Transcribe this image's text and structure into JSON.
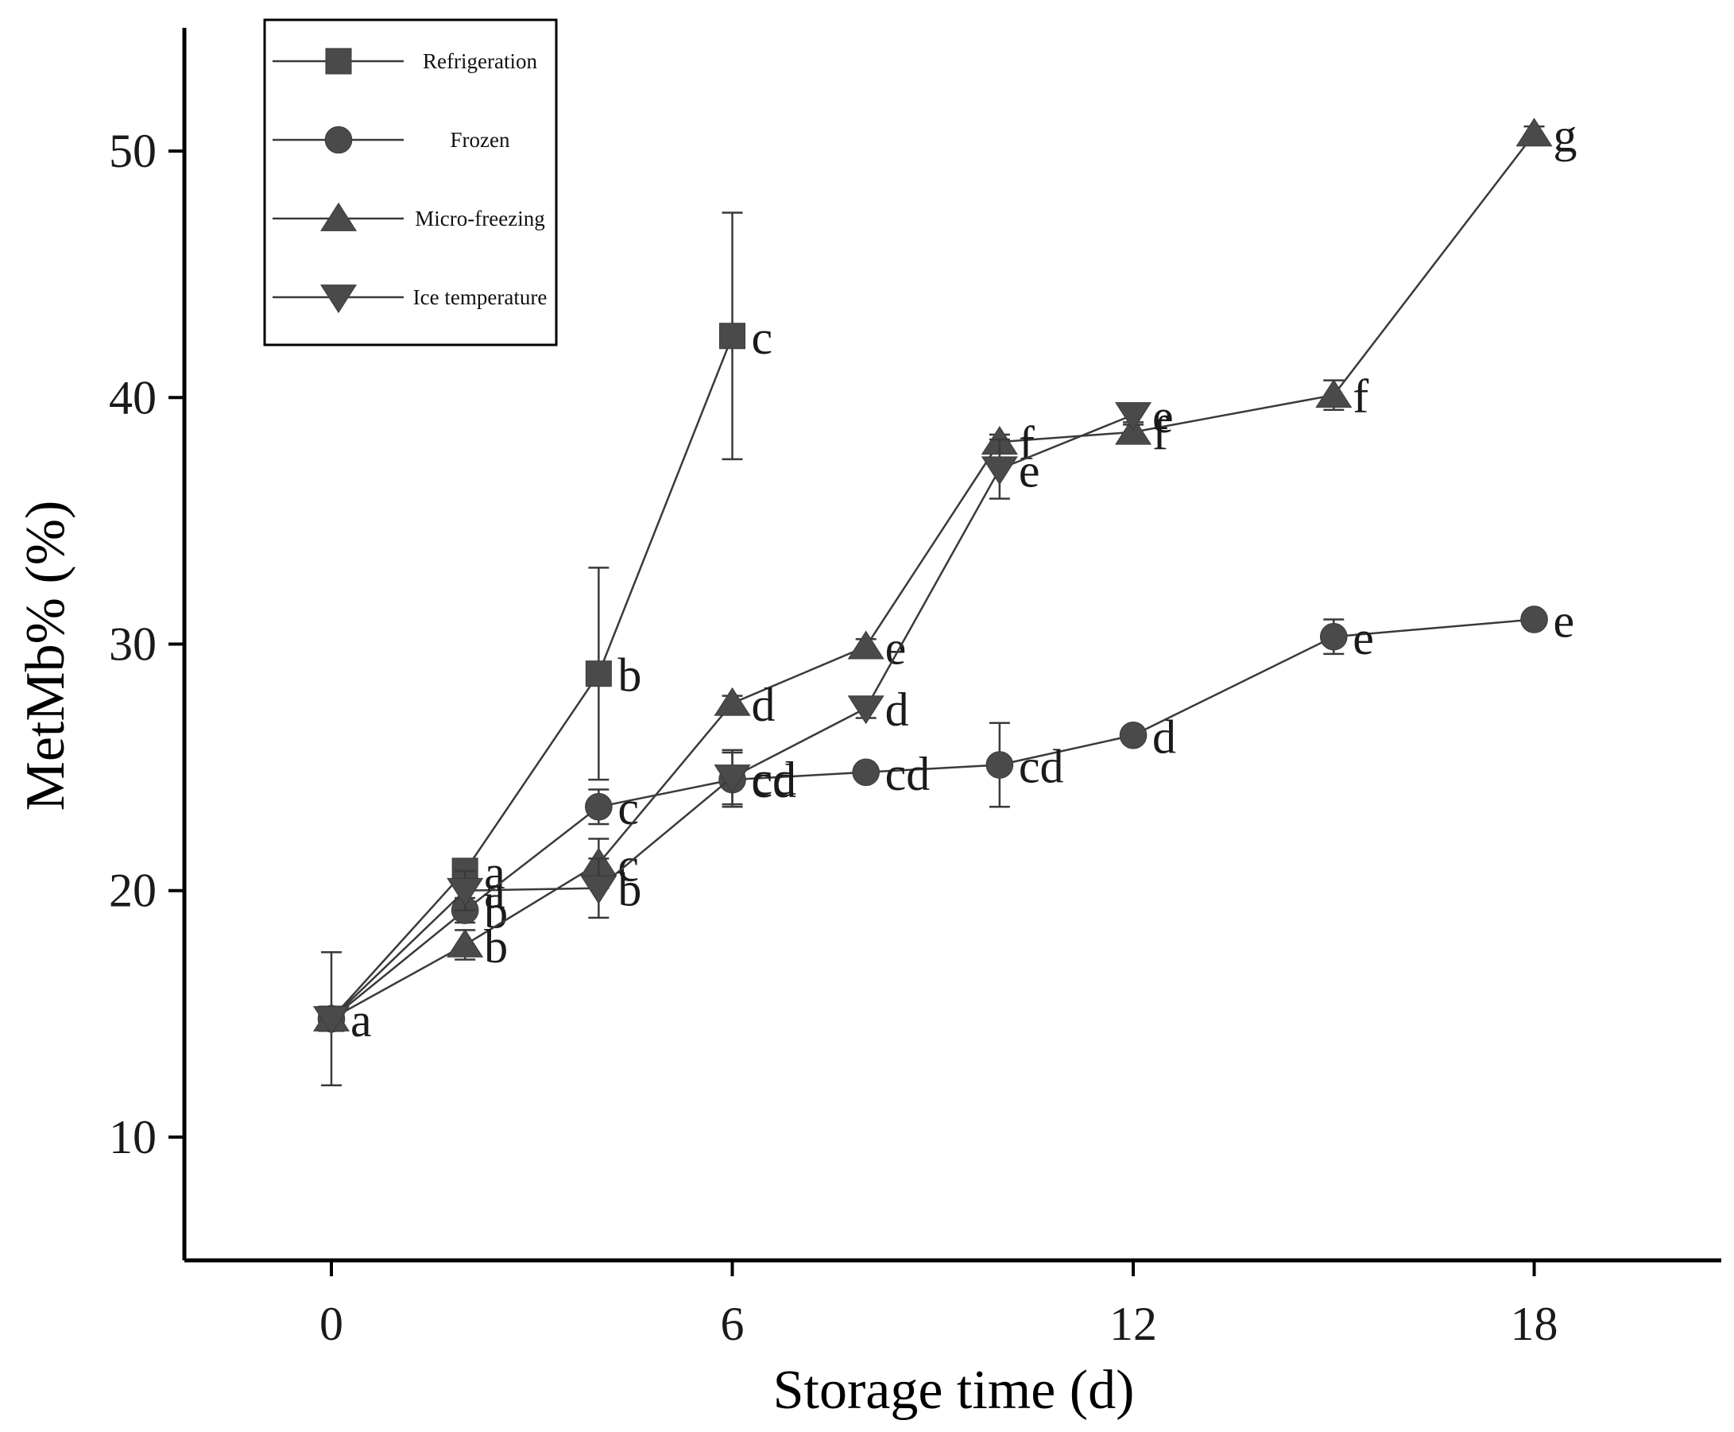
{
  "chart_data": {
    "type": "line",
    "title": "",
    "xlabel": "Storage time (d)",
    "ylabel": "MetMb% (%)",
    "xlim": [
      -2.2,
      20.8
    ],
    "ylim": [
      5,
      55
    ],
    "xticks": [
      0,
      6,
      12,
      18
    ],
    "yticks": [
      10,
      20,
      30,
      40,
      50
    ],
    "legend_position": "top-left",
    "series": [
      {
        "name": "Refrigeration",
        "marker": "square",
        "x": [
          0,
          2,
          4,
          6
        ],
        "y": [
          14.8,
          20.8,
          28.8,
          42.5
        ],
        "err": [
          2.7,
          0.4,
          4.3,
          5.0
        ],
        "labels": [
          "",
          "a",
          "b",
          "c"
        ]
      },
      {
        "name": "Frozen",
        "marker": "circle",
        "x": [
          0,
          2,
          4,
          6,
          8,
          10,
          12,
          15,
          18
        ],
        "y": [
          14.8,
          19.2,
          23.4,
          24.5,
          24.8,
          25.1,
          26.3,
          30.3,
          31.0
        ],
        "err": [
          0,
          0.5,
          0.7,
          1.1,
          0.3,
          1.7,
          0.3,
          0.7,
          0.3
        ],
        "labels": [
          "",
          "b",
          "c",
          "cd",
          "cd",
          "cd",
          "d",
          "e",
          "e"
        ]
      },
      {
        "name": "Micro-freezing",
        "marker": "triangle-up",
        "x": [
          0,
          2,
          4,
          6,
          8,
          10,
          12,
          15,
          18
        ],
        "y": [
          14.8,
          17.8,
          21.1,
          27.6,
          29.9,
          38.2,
          38.6,
          40.1,
          50.7
        ],
        "err": [
          0,
          0.6,
          1.0,
          0.3,
          0.3,
          0.3,
          0.4,
          0.6,
          0.3
        ],
        "labels": [
          "a",
          "b",
          "c",
          "d",
          "e",
          "f",
          "f",
          "f",
          "g"
        ]
      },
      {
        "name": "Ice temperature",
        "marker": "triangle-down",
        "x": [
          0,
          2,
          4,
          6,
          8,
          10,
          12
        ],
        "y": [
          14.8,
          20.0,
          20.1,
          24.6,
          27.4,
          37.1,
          39.3
        ],
        "err": [
          0,
          0.8,
          1.2,
          1.1,
          0.4,
          1.2,
          0.4
        ],
        "labels": [
          "",
          "a",
          "b",
          "cd",
          "d",
          "e",
          "e"
        ]
      }
    ]
  }
}
